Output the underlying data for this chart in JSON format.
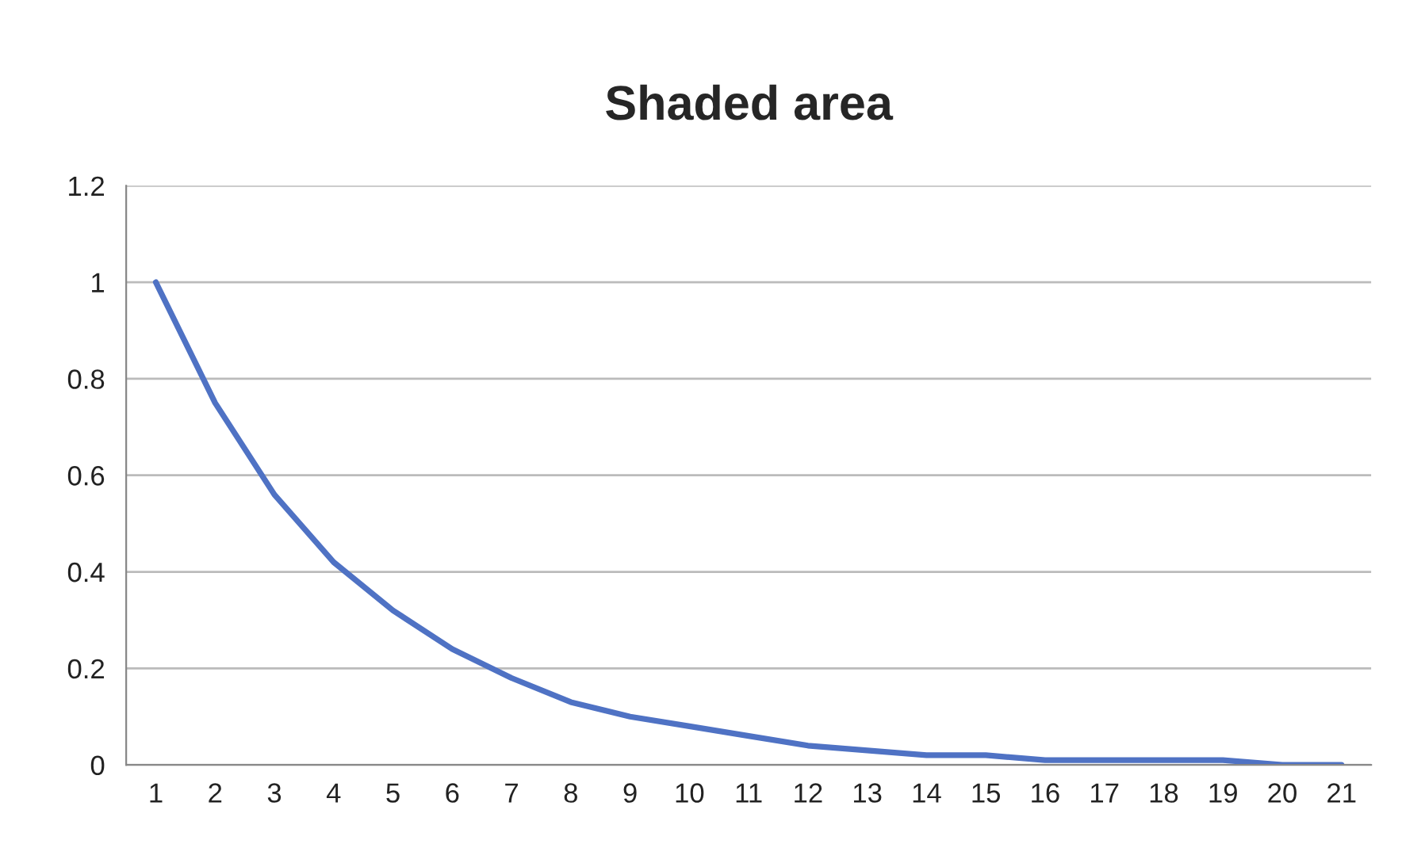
{
  "chart_data": {
    "type": "line",
    "title": "Shaded area",
    "categories": [
      "1",
      "2",
      "3",
      "4",
      "5",
      "6",
      "7",
      "8",
      "9",
      "10",
      "11",
      "12",
      "13",
      "14",
      "15",
      "16",
      "17",
      "18",
      "19",
      "20",
      "21"
    ],
    "series": [
      {
        "color": "#4f72c4",
        "values": [
          1,
          0.75,
          0.56,
          0.42,
          0.32,
          0.24,
          0.18,
          0.13,
          0.1,
          0.08,
          0.06,
          0.04,
          0.03,
          0.02,
          0.02,
          0.01,
          0.01,
          0.01,
          0.01,
          0,
          0
        ]
      }
    ],
    "ylim": [
      0,
      1.2
    ],
    "yticks": [
      0,
      0.2,
      0.4,
      0.6,
      0.8,
      1,
      1.2
    ],
    "grid": "y",
    "legend": false,
    "marker": "none",
    "line_style": "solid"
  }
}
